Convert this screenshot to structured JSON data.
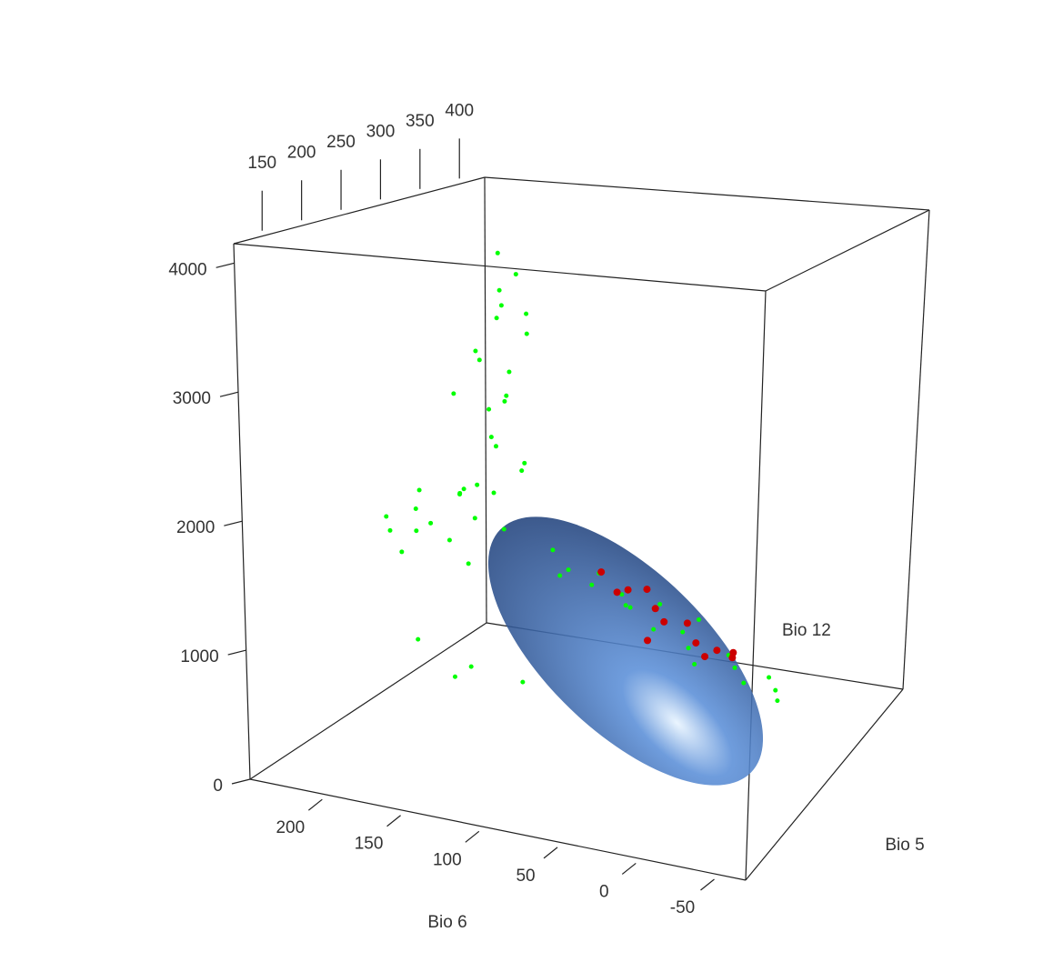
{
  "chart_data": {
    "type": "scatter3d",
    "xlabel": "Bio 6",
    "ylabel": "Bio 5",
    "zlabel": "Bio 12",
    "xlim": [
      246,
      -70
    ],
    "ylim": [
      114,
      432
    ],
    "zlim": [
      0,
      4150
    ],
    "xticks": [
      200,
      150,
      100,
      50,
      0,
      -50
    ],
    "yticks": [
      150,
      200,
      250,
      300,
      350,
      400
    ],
    "zticks": [
      0,
      1000,
      2000,
      3000,
      4000
    ],
    "series": [
      {
        "color": "#00ff00",
        "x": [
          155,
          150,
          148,
          158,
          145,
          160,
          152,
          147,
          162,
          150,
          157,
          143,
          165,
          170,
          175,
          140,
          153,
          166,
          158,
          149,
          210,
          200,
          190,
          185,
          175,
          220,
          195,
          205,
          180,
          170,
          215,
          188,
          230,
          160,
          120,
          105,
          95,
          85,
          75,
          65,
          55,
          45,
          35,
          25,
          15,
          5,
          -5,
          -15,
          -25,
          -35,
          -40,
          100,
          60,
          30,
          190,
          150,
          170,
          120
        ],
        "y": [
          270,
          285,
          260,
          275,
          290,
          255,
          280,
          265,
          295,
          250,
          272,
          283,
          262,
          240,
          300,
          278,
          268,
          288,
          245,
          292,
          270,
          250,
          290,
          265,
          280,
          255,
          300,
          240,
          275,
          260,
          285,
          245,
          270,
          290,
          275,
          265,
          290,
          255,
          280,
          270,
          295,
          260,
          285,
          270,
          255,
          290,
          275,
          265,
          285,
          270,
          260,
          240,
          250,
          300,
          230,
          220,
          240,
          230
        ],
        "z": [
          3900,
          3700,
          3500,
          3350,
          3200,
          3050,
          2900,
          2750,
          2600,
          2450,
          2300,
          2150,
          2000,
          2800,
          2500,
          3400,
          3600,
          1850,
          3150,
          2050,
          1700,
          1600,
          1800,
          1500,
          1650,
          1550,
          1750,
          1450,
          1900,
          1350,
          1800,
          1700,
          1600,
          1550,
          1500,
          1400,
          1300,
          1350,
          1200,
          1150,
          1100,
          1050,
          950,
          900,
          850,
          800,
          780,
          720,
          700,
          680,
          650,
          1450,
          1250,
          1000,
          800,
          700,
          500,
          600
        ]
      },
      {
        "color": "#cc0000",
        "x": [
          85,
          70,
          60,
          50,
          40,
          30,
          20,
          10,
          0,
          75,
          45,
          15,
          -5
        ],
        "y": [
          270,
          260,
          285,
          275,
          265,
          280,
          270,
          260,
          285,
          290,
          250,
          295,
          270
        ],
        "z": [
          1400,
          1300,
          1250,
          1150,
          1100,
          1050,
          950,
          900,
          850,
          1200,
          1000,
          800,
          880
        ]
      }
    ]
  }
}
